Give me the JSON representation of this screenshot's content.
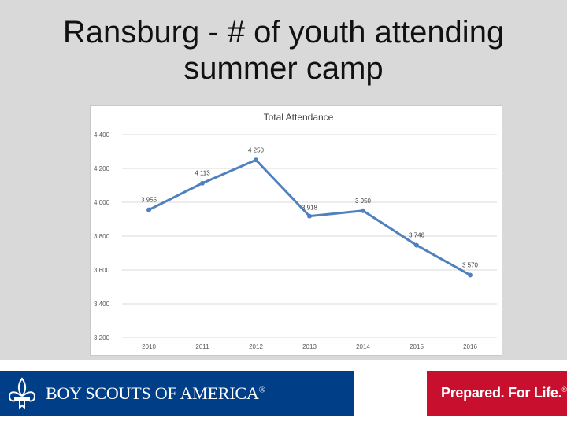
{
  "slide": {
    "title_line1": "Ransburg - # of youth attending",
    "title_line2": "summer camp"
  },
  "chart_data": {
    "type": "line",
    "title": "Total Attendance",
    "categories": [
      "2010",
      "2011",
      "2012",
      "2013",
      "2014",
      "2015",
      "2016"
    ],
    "values": [
      3955,
      4113,
      4250,
      3918,
      3950,
      3746,
      3570
    ],
    "data_labels": [
      "3 955",
      "4 113",
      "4 250",
      "3 918",
      "3 950",
      "3 746",
      "3 570"
    ],
    "ylim": [
      3200,
      4400
    ],
    "yticks": [
      3200,
      3400,
      3600,
      3800,
      4000,
      4200,
      4400
    ],
    "ytick_labels": [
      "3 200",
      "3 400",
      "3 600",
      "3 800",
      "4 000",
      "4 200",
      "4 400"
    ],
    "grid": true,
    "line_color": "#4f81bd"
  },
  "footer": {
    "org_name": "BOY SCOUTS OF AMERICA",
    "reg_mark": "®",
    "motto": "Prepared. For Life.",
    "brand_blue": "#003f87",
    "brand_red": "#c8102e"
  }
}
